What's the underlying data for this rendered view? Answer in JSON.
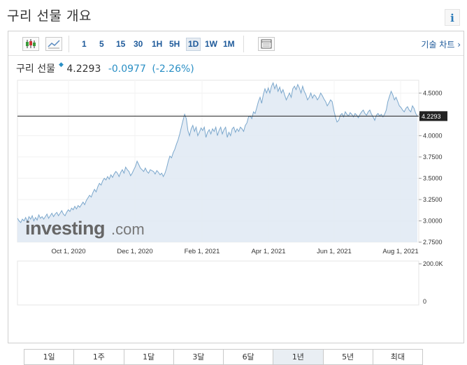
{
  "page": {
    "title": "구리 선물 개요",
    "info_label": "i"
  },
  "toolbar": {
    "timeframes": [
      "1",
      "5",
      "15",
      "30",
      "1H",
      "5H",
      "1D",
      "1W",
      "1M"
    ],
    "active_timeframe": "1D",
    "tech_chart_label": "기술 차트 ›"
  },
  "quote": {
    "name": "구리 선물",
    "price": "4.2293",
    "change": "-0.0977",
    "change_pct": "(-2.26%)"
  },
  "watermark": {
    "brand": "investing",
    "suffix": ".com"
  },
  "ranges": {
    "items": [
      "1일",
      "1주",
      "1달",
      "3달",
      "6달",
      "1년",
      "5년",
      "최대"
    ],
    "active": "1년"
  },
  "colors": {
    "line": "#7ba7cc",
    "fill": "#dfe9f3",
    "up_volume": "#6cc06c",
    "down_volume": "#c56a6a",
    "link": "#1e5a9a",
    "change": "#2a8fc5"
  },
  "chart_data": {
    "type": "area",
    "x_ticks": [
      "Oct 1, 2020",
      "Dec 1, 2020",
      "Feb 1, 2021",
      "Apr 1, 2021",
      "Jun 1, 2021",
      "Aug 1, 2021"
    ],
    "y_ticks": [
      "4.5000",
      "4.2500",
      "4.0000",
      "3.7500",
      "3.5000",
      "3.2500",
      "3.0000",
      "2.7500"
    ],
    "ylim": [
      2.75,
      4.65
    ],
    "last_price": 4.2293,
    "last_price_label": "4.2293",
    "grid": true,
    "series": [
      {
        "values": [
          3.03,
          3.0,
          2.98,
          3.02,
          3.0,
          3.04,
          2.99,
          3.05,
          3.02,
          3.06,
          3.0,
          3.04,
          3.01,
          3.07,
          3.03,
          3.05,
          3.02,
          3.05,
          3.08,
          3.03,
          3.06,
          3.09,
          3.05,
          3.08,
          3.1,
          3.06,
          3.09,
          3.12,
          3.08,
          3.06,
          3.1,
          3.13,
          3.11,
          3.15,
          3.13,
          3.17,
          3.14,
          3.18,
          3.16,
          3.19,
          3.22,
          3.19,
          3.24,
          3.27,
          3.3,
          3.28,
          3.33,
          3.37,
          3.34,
          3.4,
          3.44,
          3.42,
          3.47,
          3.5,
          3.48,
          3.52,
          3.49,
          3.54,
          3.51,
          3.55,
          3.58,
          3.56,
          3.52,
          3.57,
          3.6,
          3.56,
          3.63,
          3.6,
          3.58,
          3.53,
          3.56,
          3.6,
          3.64,
          3.7,
          3.66,
          3.62,
          3.6,
          3.58,
          3.62,
          3.58,
          3.56,
          3.6,
          3.59,
          3.58,
          3.55,
          3.59,
          3.57,
          3.54,
          3.56,
          3.52,
          3.56,
          3.62,
          3.7,
          3.76,
          3.74,
          3.8,
          3.84,
          3.9,
          3.95,
          4.02,
          4.1,
          4.18,
          4.25,
          4.2,
          4.06,
          4.0,
          4.08,
          4.12,
          4.05,
          4.1,
          4.0,
          4.04,
          4.09,
          4.06,
          4.1,
          3.98,
          4.04,
          4.07,
          4.02,
          4.08,
          4.05,
          4.1,
          4.0,
          4.06,
          4.1,
          4.02,
          4.07,
          4.1,
          3.98,
          4.04,
          4.0,
          4.08,
          4.1,
          4.04,
          4.08,
          4.05,
          4.1,
          4.08,
          4.05,
          4.12,
          4.15,
          4.22,
          4.23,
          4.2,
          4.28,
          4.26,
          4.33,
          4.4,
          4.45,
          4.38,
          4.48,
          4.55,
          4.5,
          4.56,
          4.5,
          4.58,
          4.62,
          4.55,
          4.6,
          4.52,
          4.57,
          4.5,
          4.54,
          4.48,
          4.42,
          4.46,
          4.5,
          4.45,
          4.55,
          4.58,
          4.54,
          4.6,
          4.56,
          4.5,
          4.58,
          4.52,
          4.48,
          4.42,
          4.45,
          4.5,
          4.44,
          4.48,
          4.46,
          4.42,
          4.45,
          4.5,
          4.47,
          4.43,
          4.4,
          4.35,
          4.38,
          4.42,
          4.4,
          4.3,
          4.22,
          4.16,
          4.18,
          4.24,
          4.26,
          4.22,
          4.28,
          4.25,
          4.23,
          4.27,
          4.25,
          4.22,
          4.26,
          4.24,
          4.21,
          4.25,
          4.28,
          4.3,
          4.26,
          4.24,
          4.28,
          4.3,
          4.25,
          4.22,
          4.18,
          4.24,
          4.26,
          4.23,
          4.25,
          4.22,
          4.25,
          4.3,
          4.4,
          4.46,
          4.52,
          4.48,
          4.42,
          4.45,
          4.4,
          4.35,
          4.33,
          4.3,
          4.28,
          4.32,
          4.34,
          4.3,
          4.28,
          4.35,
          4.32,
          4.26,
          4.2293
        ]
      }
    ],
    "volume": {
      "ylabel_ticks": [
        "200.0K",
        "0"
      ],
      "ylim": [
        0,
        200000
      ],
      "values": [
        0,
        0,
        0,
        0,
        0,
        0,
        0,
        0,
        0,
        0,
        0,
        0,
        0,
        0,
        0,
        0,
        0,
        0,
        0,
        0,
        0,
        0,
        0,
        0,
        0,
        0,
        0,
        0,
        0,
        0,
        0,
        0,
        0,
        0,
        0,
        0,
        0,
        0,
        0,
        0,
        0,
        0,
        0,
        0,
        0,
        0,
        0,
        0,
        0,
        0,
        0,
        0,
        0,
        0,
        0,
        0,
        0,
        0,
        0,
        0,
        0,
        0,
        0,
        0,
        0,
        0,
        0,
        0,
        0,
        0,
        0,
        0,
        0,
        0,
        0,
        0,
        0,
        0,
        0,
        0,
        0,
        0,
        0,
        0,
        0,
        0,
        0,
        0,
        0,
        0,
        0,
        0,
        0,
        0,
        0,
        0,
        0,
        0,
        0,
        0,
        0,
        0,
        0,
        0,
        0,
        0,
        0,
        0,
        0,
        0,
        0,
        0,
        0,
        0,
        0,
        0,
        0,
        0,
        0,
        0,
        0,
        0,
        0,
        0,
        0,
        0,
        0,
        0,
        0,
        0,
        0,
        0,
        0,
        0,
        0,
        0,
        0,
        0,
        0,
        0,
        0,
        0,
        0,
        0,
        0,
        0,
        0,
        0,
        0,
        0,
        0,
        0,
        0,
        0,
        0,
        0,
        0,
        0,
        0,
        0,
        0,
        0,
        0,
        0,
        0,
        0,
        0,
        0,
        0,
        0,
        0,
        0,
        0,
        0,
        0,
        0,
        0,
        0,
        0,
        0,
        0,
        0,
        0,
        0,
        0,
        0,
        0,
        0,
        0,
        0,
        0,
        0,
        0,
        0,
        0,
        0,
        0,
        0,
        0,
        0,
        0,
        0,
        0,
        0,
        0,
        0,
        0,
        0,
        0,
        0,
        0,
        0,
        0,
        0,
        0,
        0,
        0,
        0,
        0,
        0,
        0,
        0,
        0,
        0,
        0,
        0,
        0,
        0,
        0,
        0,
        0,
        0,
        0,
        0,
        0,
        0,
        0,
        0,
        0,
        0,
        0,
        0,
        0,
        0,
        0,
        0,
        0,
        0,
        0,
        0,
        0,
        0,
        0,
        0,
        0,
        0,
        0,
        0
      ]
    }
  }
}
